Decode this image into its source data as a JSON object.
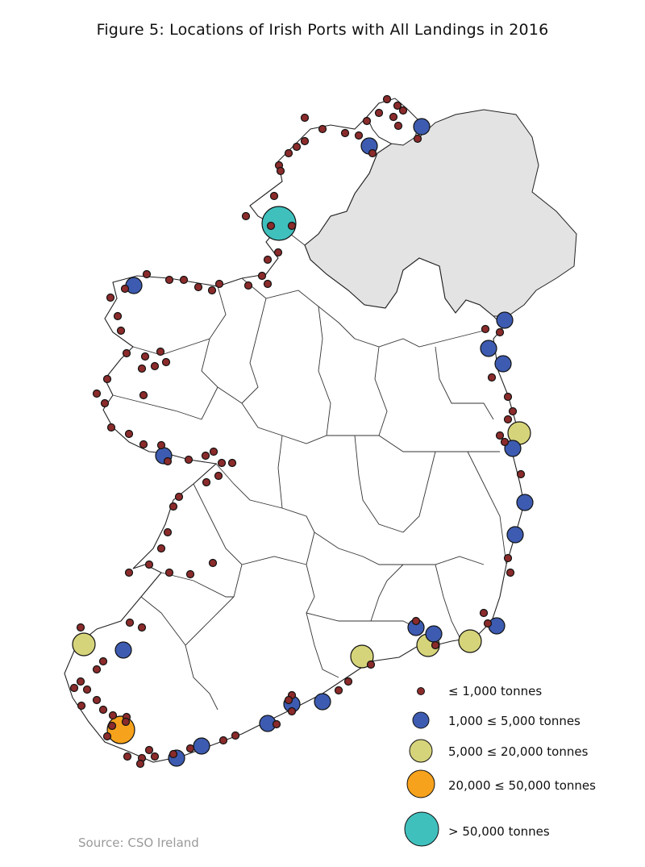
{
  "title": "Figure 5: Locations of Irish Ports with All Landings in 2016",
  "source": "Source:  CSO Ireland",
  "colors": {
    "small": "#8b2b2b",
    "medium": "#3d5bb0",
    "large": "#d6d47a",
    "xlarge": "#f6a21c",
    "xxlarge": "#3fc0bd",
    "northern_ireland": "#e3e3e3"
  },
  "legend": [
    {
      "class": "small",
      "label": "≤ 1,000 tonnes"
    },
    {
      "class": "medium",
      "label": "1,000 ≤ 5,000 tonnes"
    },
    {
      "class": "large",
      "label": "5,000 ≤ 20,000 tonnes"
    },
    {
      "class": "xlarge",
      "label": "20,000 ≤ 50,000 tonnes"
    },
    {
      "class": "xxlarge",
      "label": "> 50,000 tonnes"
    }
  ],
  "ports": {
    "xxlarge": 1,
    "xlarge": 1,
    "large": 5,
    "medium": 17,
    "small": 115
  }
}
